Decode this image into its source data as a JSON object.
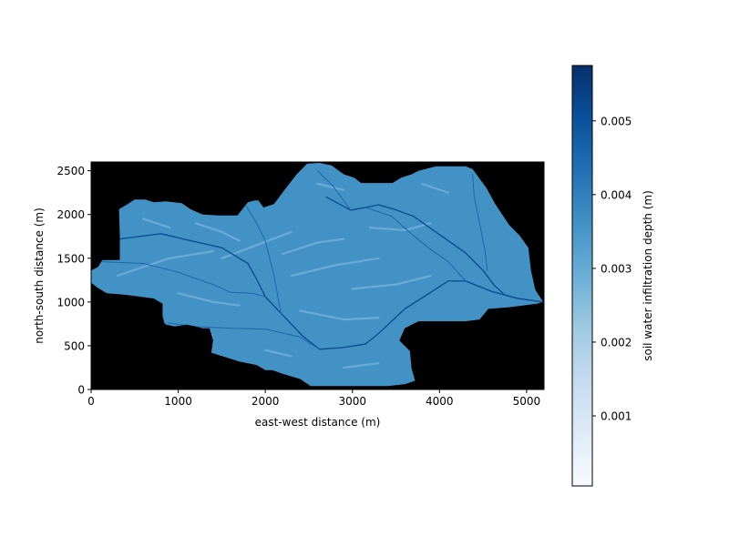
{
  "chart_data": {
    "type": "heatmap",
    "xlabel": "east-west distance (m)",
    "ylabel": "north-south distance (m)",
    "xlim": [
      0,
      5200
    ],
    "ylim": [
      0,
      2600
    ],
    "x_ticks": [
      0,
      1000,
      2000,
      3000,
      4000,
      5000
    ],
    "y_ticks": [
      0,
      500,
      1000,
      1500,
      2000,
      2500
    ],
    "x_tick_labels": [
      "0",
      "1000",
      "2000",
      "3000",
      "4000",
      "5000"
    ],
    "y_tick_labels": [
      "0",
      "500",
      "1000",
      "1500",
      "2000",
      "2500"
    ],
    "background_color": "#000000",
    "watershed_fill_color": "#4292c6",
    "typical_value": 0.0035,
    "colorbar": {
      "label": "soil water infiltration depth (m)",
      "colormap": "Blues",
      "range": [
        5e-05,
        0.00575
      ],
      "ticks": [
        0.001,
        0.002,
        0.003,
        0.004,
        0.005
      ],
      "tick_labels": [
        "0.001",
        "0.002",
        "0.003",
        "0.004",
        "0.005"
      ],
      "color_stops": [
        "#f7fbff",
        "#deebf7",
        "#c6dbef",
        "#9ecae1",
        "#6baed6",
        "#4292c6",
        "#2171b5",
        "#08519c",
        "#08306b"
      ]
    },
    "watershed_boundary": [
      [
        0,
        1360
      ],
      [
        80,
        1400
      ],
      [
        130,
        1480
      ],
      [
        330,
        1480
      ],
      [
        330,
        1760
      ],
      [
        320,
        2060
      ],
      [
        420,
        2120
      ],
      [
        500,
        2170
      ],
      [
        620,
        2170
      ],
      [
        720,
        2140
      ],
      [
        860,
        2150
      ],
      [
        1040,
        2130
      ],
      [
        1140,
        2060
      ],
      [
        1280,
        2000
      ],
      [
        1460,
        1990
      ],
      [
        1680,
        1990
      ],
      [
        1800,
        2140
      ],
      [
        1880,
        2160
      ],
      [
        1920,
        2160
      ],
      [
        1980,
        2080
      ],
      [
        2100,
        2120
      ],
      [
        2220,
        2280
      ],
      [
        2360,
        2460
      ],
      [
        2480,
        2580
      ],
      [
        2620,
        2590
      ],
      [
        2760,
        2560
      ],
      [
        2900,
        2460
      ],
      [
        3020,
        2420
      ],
      [
        3100,
        2360
      ],
      [
        3460,
        2360
      ],
      [
        3560,
        2420
      ],
      [
        3680,
        2460
      ],
      [
        3760,
        2500
      ],
      [
        3960,
        2550
      ],
      [
        4300,
        2550
      ],
      [
        4380,
        2520
      ],
      [
        4540,
        2300
      ],
      [
        4640,
        2120
      ],
      [
        4800,
        1880
      ],
      [
        4920,
        1760
      ],
      [
        5020,
        1620
      ],
      [
        5050,
        1360
      ],
      [
        5100,
        1140
      ],
      [
        5190,
        1000
      ],
      [
        5120,
        980
      ],
      [
        4800,
        940
      ],
      [
        4560,
        920
      ],
      [
        4460,
        800
      ],
      [
        4300,
        780
      ],
      [
        3760,
        780
      ],
      [
        3600,
        700
      ],
      [
        3540,
        560
      ],
      [
        3660,
        440
      ],
      [
        3680,
        240
      ],
      [
        3720,
        100
      ],
      [
        3600,
        60
      ],
      [
        3400,
        40
      ],
      [
        2820,
        40
      ],
      [
        2520,
        40
      ],
      [
        2400,
        120
      ],
      [
        2200,
        180
      ],
      [
        2080,
        220
      ],
      [
        2000,
        220
      ],
      [
        1900,
        280
      ],
      [
        1700,
        320
      ],
      [
        1380,
        420
      ],
      [
        1400,
        560
      ],
      [
        1360,
        700
      ],
      [
        1280,
        700
      ],
      [
        1200,
        720
      ],
      [
        1100,
        740
      ],
      [
        960,
        720
      ],
      [
        860,
        740
      ],
      [
        840,
        760
      ],
      [
        820,
        840
      ],
      [
        820,
        980
      ],
      [
        720,
        1040
      ],
      [
        420,
        1080
      ],
      [
        180,
        1100
      ],
      [
        80,
        1160
      ],
      [
        0,
        1220
      ]
    ],
    "channels": [
      [
        [
          330,
          1720
        ],
        [
          800,
          1780
        ],
        [
          1100,
          1710
        ],
        [
          1500,
          1620
        ],
        [
          1800,
          1440
        ],
        [
          1900,
          1260
        ],
        [
          2000,
          1060
        ],
        [
          2180,
          870
        ],
        [
          2420,
          620
        ],
        [
          2620,
          460
        ],
        [
          2900,
          480
        ],
        [
          3150,
          520
        ],
        [
          3300,
          640
        ],
        [
          3600,
          920
        ],
        [
          3820,
          1060
        ],
        [
          4100,
          1240
        ],
        [
          4300,
          1240
        ],
        [
          4600,
          1120
        ],
        [
          4900,
          1040
        ],
        [
          5190,
          1000
        ]
      ],
      [
        [
          2700,
          2200
        ],
        [
          2980,
          2050
        ],
        [
          3150,
          2080
        ],
        [
          3300,
          2110
        ],
        [
          3480,
          2060
        ],
        [
          3700,
          1980
        ],
        [
          3900,
          1840
        ],
        [
          4100,
          1700
        ],
        [
          4300,
          1560
        ],
        [
          4500,
          1360
        ],
        [
          4620,
          1200
        ],
        [
          4750,
          1080
        ],
        [
          4900,
          1040
        ]
      ],
      [
        [
          130,
          1460
        ],
        [
          600,
          1440
        ],
        [
          1000,
          1340
        ],
        [
          1400,
          1200
        ],
        [
          1600,
          1110
        ],
        [
          1850,
          1100
        ],
        [
          2000,
          1060
        ]
      ],
      [
        [
          880,
          760
        ],
        [
          1200,
          720
        ],
        [
          1600,
          700
        ],
        [
          2000,
          690
        ],
        [
          2400,
          600
        ],
        [
          2620,
          460
        ]
      ],
      [
        [
          3150,
          2080
        ],
        [
          3450,
          1980
        ],
        [
          3700,
          1760
        ],
        [
          3900,
          1600
        ],
        [
          4100,
          1460
        ],
        [
          4300,
          1240
        ]
      ],
      [
        [
          4380,
          2460
        ],
        [
          4400,
          2200
        ],
        [
          4460,
          1900
        ],
        [
          4520,
          1600
        ],
        [
          4550,
          1360
        ]
      ],
      [
        [
          2600,
          2500
        ],
        [
          2780,
          2320
        ],
        [
          2980,
          2050
        ]
      ],
      [
        [
          1780,
          2100
        ],
        [
          1900,
          1900
        ],
        [
          2000,
          1700
        ],
        [
          2050,
          1500
        ],
        [
          2100,
          1300
        ],
        [
          2180,
          870
        ]
      ]
    ],
    "ridges": [
      [
        [
          300,
          1300
        ],
        [
          900,
          1500
        ],
        [
          1400,
          1580
        ]
      ],
      [
        [
          1500,
          1500
        ],
        [
          1900,
          1650
        ],
        [
          2300,
          1800
        ]
      ],
      [
        [
          2200,
          1550
        ],
        [
          2600,
          1680
        ],
        [
          2900,
          1720
        ]
      ],
      [
        [
          2300,
          1300
        ],
        [
          2800,
          1420
        ],
        [
          3300,
          1500
        ]
      ],
      [
        [
          3000,
          1150
        ],
        [
          3500,
          1200
        ],
        [
          3900,
          1300
        ]
      ],
      [
        [
          3200,
          1850
        ],
        [
          3600,
          1820
        ],
        [
          3900,
          1900
        ]
      ],
      [
        [
          1000,
          1100
        ],
        [
          1400,
          1000
        ],
        [
          1700,
          960
        ]
      ],
      [
        [
          2400,
          900
        ],
        [
          2900,
          800
        ],
        [
          3300,
          820
        ]
      ],
      [
        [
          2600,
          2350
        ],
        [
          2900,
          2280
        ]
      ],
      [
        [
          3800,
          2350
        ],
        [
          4100,
          2250
        ]
      ],
      [
        [
          1200,
          1900
        ],
        [
          1500,
          1800
        ],
        [
          1700,
          1700
        ]
      ],
      [
        [
          600,
          1950
        ],
        [
          900,
          1850
        ]
      ],
      [
        [
          2000,
          450
        ],
        [
          2300,
          380
        ]
      ],
      [
        [
          2900,
          250
        ],
        [
          3300,
          300
        ]
      ]
    ]
  }
}
